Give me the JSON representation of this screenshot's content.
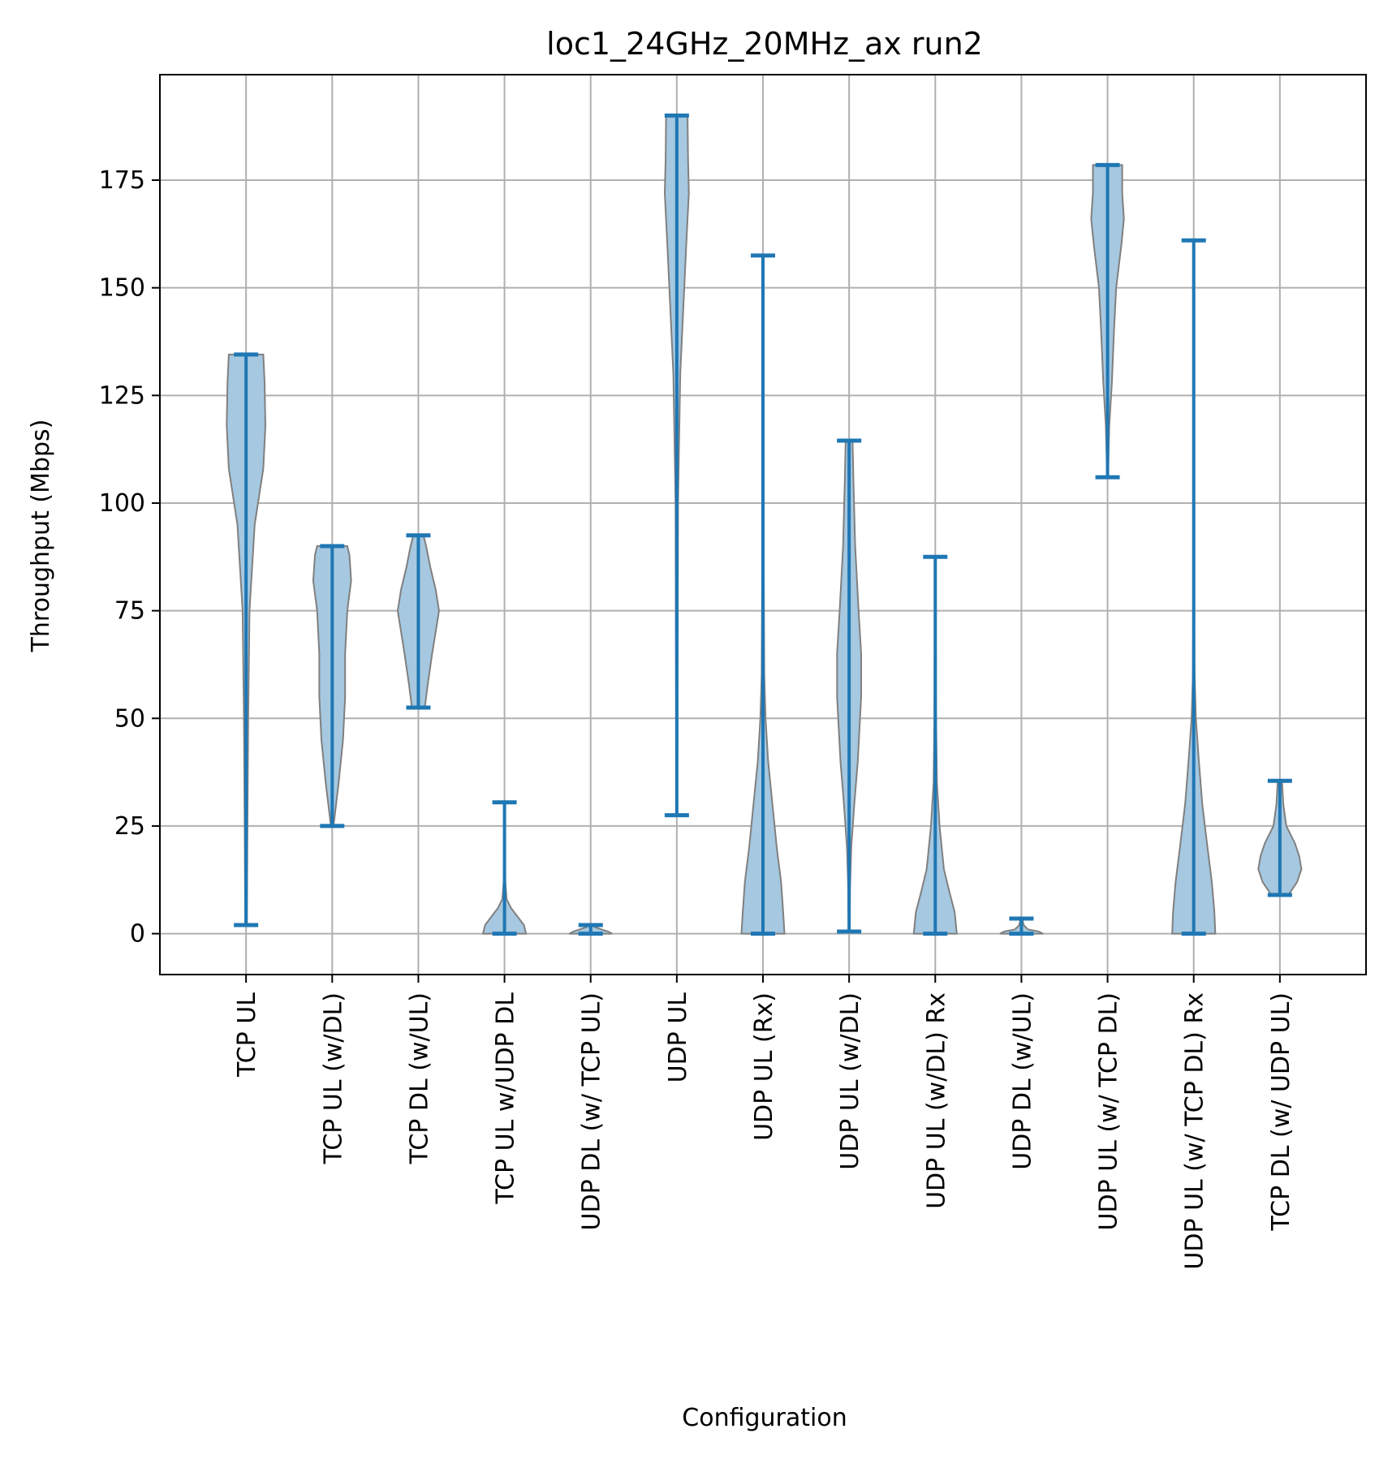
{
  "chart_data": {
    "type": "violin",
    "title": "loc1_24GHz_20MHz_ax run2",
    "xlabel": "Configuration",
    "ylabel": "Throughput (Mbps)",
    "ylim": [
      -9.5,
      199.5
    ],
    "yticks": [
      0,
      25,
      50,
      75,
      100,
      125,
      150,
      175
    ],
    "grid": true,
    "colors": {
      "body_fill": "#a6c8e0",
      "body_edge": "#808080",
      "whisker": "#1f77b4",
      "grid": "#b0b0b0"
    },
    "categories": [
      "TCP  UL",
      "TCP UL (w/DL)",
      "TCP DL (w/UL)",
      "TCP  UL w/UDP DL",
      "UDP DL (w/ TCP UL)",
      "UDP  UL",
      "UDP  UL (Rx)",
      "UDP UL (w/DL)",
      "UDP UL (w/DL) Rx",
      "UDP DL (w/UL)",
      "UDP UL (w/ TCP DL)",
      "UDP UL (w/ TCP DL) Rx",
      "TCP DL (w/ UDP UL)"
    ],
    "series": [
      {
        "min": 2,
        "max": 134.5,
        "density": [
          [
            2,
            0.02
          ],
          [
            20,
            0.03
          ],
          [
            50,
            0.05
          ],
          [
            75,
            0.08
          ],
          [
            95,
            0.2
          ],
          [
            108,
            0.4
          ],
          [
            118,
            0.45
          ],
          [
            128,
            0.43
          ],
          [
            134.5,
            0.4
          ]
        ]
      },
      {
        "min": 25,
        "max": 90,
        "density": [
          [
            25,
            0.03
          ],
          [
            35,
            0.15
          ],
          [
            45,
            0.25
          ],
          [
            55,
            0.3
          ],
          [
            65,
            0.3
          ],
          [
            75,
            0.35
          ],
          [
            82,
            0.44
          ],
          [
            88,
            0.4
          ],
          [
            90,
            0.35
          ]
        ]
      },
      {
        "min": 52.5,
        "max": 92.5,
        "density": [
          [
            52.5,
            0.15
          ],
          [
            58,
            0.22
          ],
          [
            65,
            0.32
          ],
          [
            70,
            0.4
          ],
          [
            75,
            0.48
          ],
          [
            80,
            0.4
          ],
          [
            85,
            0.28
          ],
          [
            90,
            0.18
          ],
          [
            92.5,
            0.12
          ]
        ]
      },
      {
        "min": 0,
        "max": 30.5,
        "density": [
          [
            0,
            0.5
          ],
          [
            2,
            0.45
          ],
          [
            4,
            0.3
          ],
          [
            6,
            0.15
          ],
          [
            8,
            0.05
          ],
          [
            12,
            0.02
          ],
          [
            20,
            0.01
          ],
          [
            30.5,
            0.01
          ]
        ]
      },
      {
        "min": 0,
        "max": 2,
        "density": [
          [
            0,
            0.5
          ],
          [
            0.5,
            0.4
          ],
          [
            1,
            0.25
          ],
          [
            1.5,
            0.1
          ],
          [
            2,
            0.05
          ]
        ]
      },
      {
        "min": 27.5,
        "max": 190,
        "density": [
          [
            27.5,
            0.01
          ],
          [
            60,
            0.02
          ],
          [
            100,
            0.03
          ],
          [
            130,
            0.08
          ],
          [
            145,
            0.15
          ],
          [
            160,
            0.22
          ],
          [
            172,
            0.28
          ],
          [
            180,
            0.26
          ],
          [
            190,
            0.25
          ]
        ]
      },
      {
        "min": 0,
        "max": 157.5,
        "density": [
          [
            0,
            0.5
          ],
          [
            5,
            0.47
          ],
          [
            12,
            0.42
          ],
          [
            20,
            0.32
          ],
          [
            30,
            0.22
          ],
          [
            40,
            0.12
          ],
          [
            50,
            0.06
          ],
          [
            60,
            0.03
          ],
          [
            80,
            0.02
          ],
          [
            100,
            0.01
          ],
          [
            157.5,
            0.01
          ]
        ]
      },
      {
        "min": 0.5,
        "max": 114.5,
        "density": [
          [
            0.5,
            0.01
          ],
          [
            10,
            0.02
          ],
          [
            20,
            0.05
          ],
          [
            30,
            0.12
          ],
          [
            40,
            0.2
          ],
          [
            55,
            0.28
          ],
          [
            65,
            0.28
          ],
          [
            75,
            0.22
          ],
          [
            90,
            0.14
          ],
          [
            105,
            0.1
          ],
          [
            114.5,
            0.08
          ]
        ]
      },
      {
        "min": 0,
        "max": 87.5,
        "density": [
          [
            0,
            0.5
          ],
          [
            5,
            0.45
          ],
          [
            10,
            0.32
          ],
          [
            15,
            0.2
          ],
          [
            25,
            0.1
          ],
          [
            35,
            0.04
          ],
          [
            50,
            0.02
          ],
          [
            87.5,
            0.01
          ]
        ]
      },
      {
        "min": 0,
        "max": 3.5,
        "density": [
          [
            0,
            0.5
          ],
          [
            0.5,
            0.4
          ],
          [
            1,
            0.15
          ],
          [
            2,
            0.05
          ],
          [
            3.5,
            0.02
          ]
        ]
      },
      {
        "min": 106,
        "max": 178.5,
        "density": [
          [
            106,
            0.01
          ],
          [
            118,
            0.04
          ],
          [
            128,
            0.1
          ],
          [
            140,
            0.15
          ],
          [
            150,
            0.2
          ],
          [
            160,
            0.32
          ],
          [
            166,
            0.38
          ],
          [
            172,
            0.34
          ],
          [
            178.5,
            0.34
          ]
        ]
      },
      {
        "min": 0,
        "max": 161,
        "density": [
          [
            0,
            0.5
          ],
          [
            5,
            0.48
          ],
          [
            12,
            0.42
          ],
          [
            20,
            0.32
          ],
          [
            30,
            0.2
          ],
          [
            40,
            0.12
          ],
          [
            50,
            0.05
          ],
          [
            60,
            0.02
          ],
          [
            80,
            0.01
          ],
          [
            161,
            0.01
          ]
        ]
      },
      {
        "min": 9,
        "max": 35.5,
        "density": [
          [
            9,
            0.2
          ],
          [
            12,
            0.4
          ],
          [
            15,
            0.5
          ],
          [
            18,
            0.45
          ],
          [
            21,
            0.35
          ],
          [
            25,
            0.15
          ],
          [
            30,
            0.08
          ],
          [
            35.5,
            0.05
          ]
        ]
      }
    ]
  }
}
